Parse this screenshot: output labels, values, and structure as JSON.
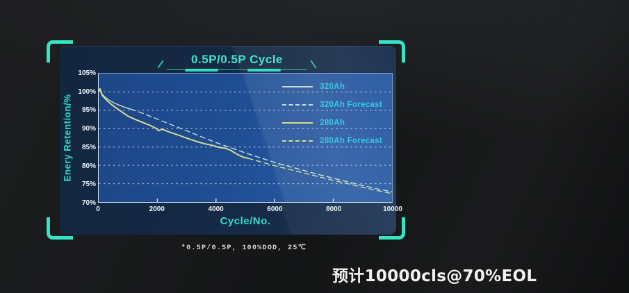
{
  "footnote": "*0.5P/0.5P, 100%DOD, 25℃",
  "annotation": "预计10000cls@70%EOL",
  "colors": {
    "accent_teal": "#2fe0c4",
    "title_text": "#3fe6cb",
    "legend_text": "#3cc6e0",
    "tick_text": "#eef4fb",
    "panel_bg": "#142944",
    "plot_bg": "#1f4e94",
    "series_320ah": "#c7d6c9",
    "series_320ah_forecast": "#c2dce2",
    "series_280ah": "#d9db92",
    "series_280ah_forecast": "#d6d894"
  },
  "chart_data": {
    "type": "line",
    "title": "0.5P/0.5P Cycle",
    "xlabel": "Cycle/No.",
    "ylabel": "Enery Retention/%",
    "xlim": [
      0,
      10000
    ],
    "ylim": [
      70,
      105
    ],
    "x_ticks": [
      0,
      2000,
      4000,
      6000,
      8000,
      10000
    ],
    "y_ticks": [
      105,
      100,
      95,
      90,
      85,
      80,
      75,
      70
    ],
    "gridlines_y": [
      100,
      95,
      90,
      85,
      80,
      75
    ],
    "grid": "dashed-white",
    "legend_position": "top-right",
    "series": [
      {
        "name": "320Ah",
        "style": "solid",
        "color": "#c7d6c9",
        "points": [
          [
            0,
            100.3
          ],
          [
            40,
            100.9
          ],
          [
            100,
            99.6
          ],
          [
            200,
            98.7
          ],
          [
            350,
            97.8
          ],
          [
            500,
            97.1
          ],
          [
            700,
            96.4
          ],
          [
            900,
            95.8
          ],
          [
            1100,
            95.3
          ]
        ]
      },
      {
        "name": "320Ah Forecast",
        "style": "dashed",
        "color": "#c2dce2",
        "points": [
          [
            1100,
            95.3
          ],
          [
            1500,
            94.2
          ],
          [
            2000,
            92.6
          ],
          [
            2500,
            91.0
          ],
          [
            3000,
            89.4
          ],
          [
            3500,
            87.8
          ],
          [
            4000,
            86.2
          ],
          [
            4500,
            84.8
          ],
          [
            5000,
            83.4
          ],
          [
            5500,
            82.1
          ],
          [
            6000,
            80.8
          ],
          [
            6500,
            79.7
          ],
          [
            7000,
            78.6
          ],
          [
            7500,
            77.5
          ],
          [
            8000,
            76.5
          ],
          [
            8500,
            75.5
          ],
          [
            9000,
            74.5
          ],
          [
            9500,
            73.6
          ],
          [
            10000,
            72.8
          ]
        ]
      },
      {
        "name": "280Ah",
        "style": "solid",
        "color": "#d9db92",
        "points": [
          [
            0,
            100.2
          ],
          [
            50,
            100.8
          ],
          [
            120,
            99.1
          ],
          [
            250,
            97.9
          ],
          [
            400,
            96.8
          ],
          [
            600,
            95.6
          ],
          [
            800,
            94.5
          ],
          [
            1000,
            93.4
          ],
          [
            1250,
            92.5
          ],
          [
            1500,
            91.7
          ],
          [
            1750,
            90.9
          ],
          [
            1950,
            90.1
          ],
          [
            2050,
            89.4
          ],
          [
            2150,
            89.9
          ],
          [
            2400,
            89.1
          ],
          [
            2700,
            88.3
          ],
          [
            3000,
            87.4
          ],
          [
            3300,
            86.6
          ],
          [
            3600,
            85.9
          ],
          [
            3900,
            85.4
          ],
          [
            4100,
            84.9
          ],
          [
            4300,
            84.7
          ],
          [
            4500,
            84.1
          ],
          [
            4700,
            83.1
          ],
          [
            4900,
            82.3
          ],
          [
            5100,
            81.9
          ]
        ]
      },
      {
        "name": "280Ah Forecast",
        "style": "dashed",
        "color": "#d6d894",
        "points": [
          [
            5100,
            81.9
          ],
          [
            5500,
            81.0
          ],
          [
            6000,
            79.9
          ],
          [
            6500,
            78.9
          ],
          [
            7000,
            77.9
          ],
          [
            7500,
            76.9
          ],
          [
            8000,
            75.9
          ],
          [
            8500,
            75.0
          ],
          [
            9000,
            74.0
          ],
          [
            9500,
            73.1
          ],
          [
            10000,
            72.3
          ]
        ]
      }
    ]
  }
}
